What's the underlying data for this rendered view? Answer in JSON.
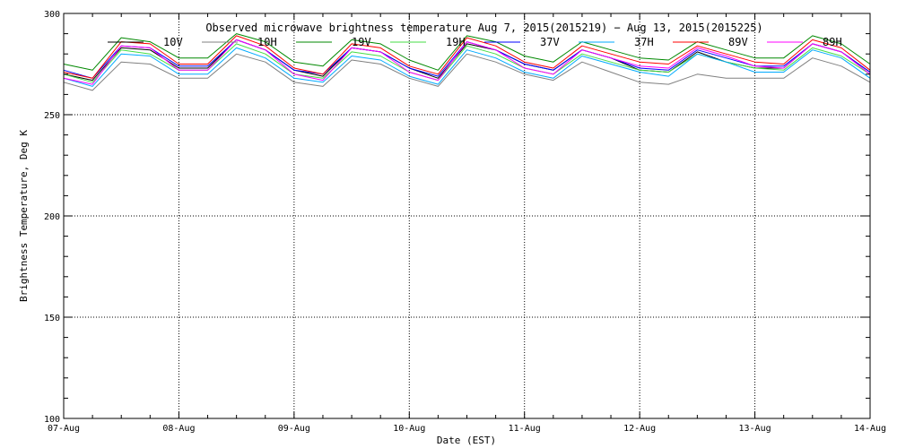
{
  "chart_data": {
    "type": "line",
    "title": "Observed microwave brightness temperature Aug  7, 2015(2015219) − Aug 13, 2015(2015225)",
    "xlabel": "Date (EST)",
    "ylabel": "Brightness Temperature, Deg K",
    "xlim": [
      "07-Aug",
      "14-Aug"
    ],
    "ylim": [
      100,
      300
    ],
    "grid": true,
    "legend_position": "top",
    "x_tick_labels": [
      "07-Aug",
      "08-Aug",
      "09-Aug",
      "10-Aug",
      "11-Aug",
      "12-Aug",
      "13-Aug",
      "14-Aug"
    ],
    "y_tick_labels": [
      "100",
      "150",
      "200",
      "250",
      "300"
    ],
    "y_ticks": [
      100,
      150,
      200,
      250,
      300
    ],
    "x": [
      "07-Aug 00:00",
      "07-Aug 06:00",
      "07-Aug 12:00",
      "07-Aug 18:00",
      "08-Aug 00:00",
      "08-Aug 06:00",
      "08-Aug 12:00",
      "08-Aug 18:00",
      "09-Aug 00:00",
      "09-Aug 06:00",
      "09-Aug 12:00",
      "09-Aug 18:00",
      "10-Aug 00:00",
      "10-Aug 06:00",
      "10-Aug 12:00",
      "10-Aug 18:00",
      "11-Aug 00:00",
      "11-Aug 06:00",
      "11-Aug 12:00",
      "11-Aug 18:00",
      "12-Aug 00:00",
      "12-Aug 06:00",
      "12-Aug 12:00",
      "12-Aug 18:00",
      "13-Aug 00:00",
      "13-Aug 06:00",
      "13-Aug 12:00",
      "13-Aug 18:00",
      "14-Aug 00:00"
    ],
    "series": [
      {
        "name": "10V",
        "color": "#000000",
        "values": [
          270,
          267,
          283,
          282,
          273,
          273,
          287,
          282,
          272,
          269,
          283,
          281,
          273,
          268,
          285,
          282,
          275,
          272,
          282,
          278,
          272,
          271,
          281,
          276,
          273,
          273,
          285,
          281,
          271
        ]
      },
      {
        "name": "10H",
        "color": "#808080",
        "values": [
          266,
          262,
          276,
          275,
          268,
          268,
          280,
          276,
          266,
          264,
          277,
          275,
          268,
          264,
          280,
          276,
          270,
          267,
          276,
          271,
          266,
          265,
          270,
          268,
          268,
          268,
          278,
          274,
          266
        ]
      },
      {
        "name": "19V",
        "color": "#008800",
        "values": [
          275,
          272,
          288,
          286,
          278,
          278,
          290,
          286,
          276,
          274,
          287,
          285,
          277,
          272,
          289,
          286,
          279,
          276,
          286,
          282,
          278,
          277,
          286,
          282,
          278,
          278,
          289,
          285,
          275
        ]
      },
      {
        "name": "19H",
        "color": "#44dd44",
        "values": [
          270,
          266,
          282,
          280,
          272,
          272,
          285,
          280,
          270,
          268,
          281,
          279,
          271,
          267,
          284,
          280,
          273,
          270,
          280,
          276,
          272,
          271,
          280,
          276,
          273,
          272,
          283,
          279,
          270
        ]
      },
      {
        "name": "37V",
        "color": "#0000ff",
        "values": [
          272,
          268,
          284,
          283,
          274,
          274,
          287,
          282,
          272,
          270,
          283,
          281,
          273,
          269,
          286,
          282,
          275,
          272,
          282,
          278,
          273,
          272,
          282,
          278,
          274,
          274,
          285,
          281,
          271
        ]
      },
      {
        "name": "37H",
        "color": "#00aaff",
        "values": [
          268,
          264,
          280,
          279,
          270,
          270,
          283,
          278,
          268,
          266,
          279,
          277,
          269,
          265,
          282,
          278,
          271,
          268,
          279,
          275,
          271,
          269,
          280,
          276,
          271,
          271,
          282,
          278,
          268
        ]
      },
      {
        "name": "89V",
        "color": "#ff0000",
        "values": [
          271,
          268,
          286,
          285,
          275,
          275,
          289,
          284,
          273,
          270,
          285,
          283,
          274,
          270,
          288,
          284,
          276,
          273,
          284,
          280,
          276,
          275,
          284,
          280,
          276,
          275,
          287,
          283,
          272
        ]
      },
      {
        "name": "89H",
        "color": "#ff00ff",
        "values": [
          268,
          265,
          284,
          283,
          272,
          272,
          287,
          282,
          270,
          267,
          283,
          281,
          271,
          267,
          286,
          282,
          273,
          270,
          282,
          278,
          274,
          273,
          283,
          279,
          274,
          273,
          285,
          281,
          270
        ]
      }
    ]
  }
}
